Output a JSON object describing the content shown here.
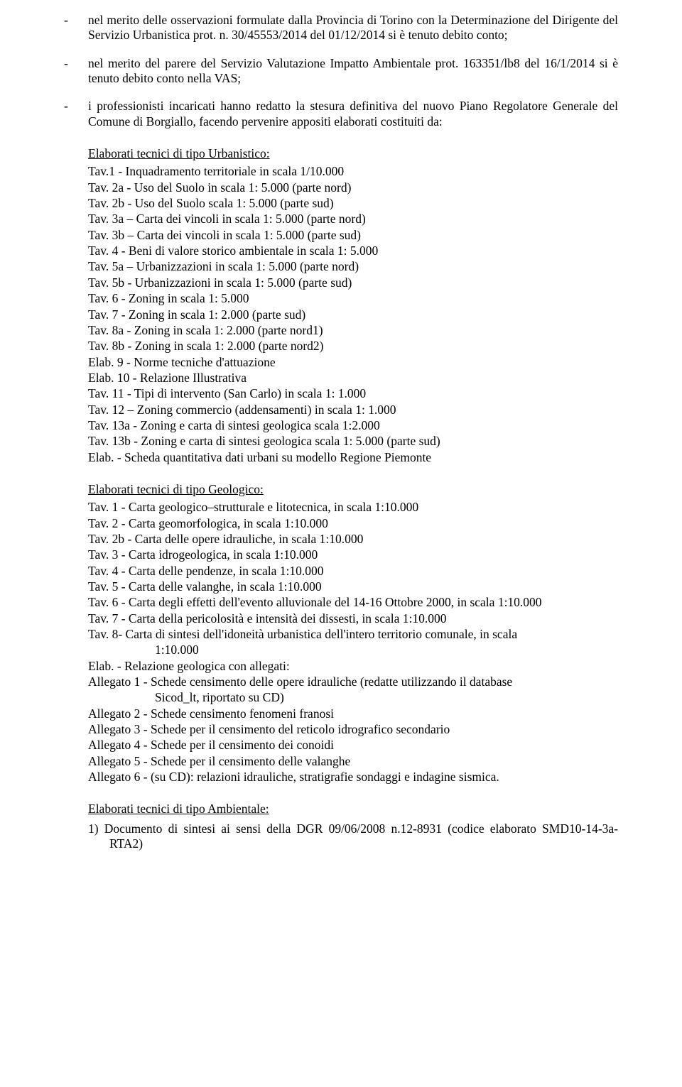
{
  "b1_l1": "nel merito delle osservazioni formulate dalla Provincia di Torino con la Determinazione del",
  "b1_l2": "Dirigente del Servizio Urbanistica prot. n. 30/45553/2014 del 01/12/2014 si è tenuto debito conto;",
  "b2_l1": "nel merito del parere del Servizio Valutazione Impatto Ambientale prot. 163351/lb8 del",
  "b2_l2": "16/1/2014 si è tenuto debito conto nella VAS;",
  "b3_l1": "i professionisti incaricati hanno redatto la stesura definitiva del nuovo  Piano Regolatore",
  "b3_l2": "Generale del Comune di Borgiallo, facendo pervenire appositi elaborati costituiti da:",
  "h_urb": "Elaborati tecnici di tipo Urbanistico",
  "u": [
    "Tav.1 -  Inquadramento territoriale in scala 1/10.000",
    "Tav. 2a - Uso del Suolo in scala 1: 5.000 (parte nord)",
    "Tav. 2b - Uso del Suolo scala 1: 5.000 (parte sud)",
    "Tav. 3a – Carta dei vincoli in scala 1: 5.000 (parte nord)",
    "Tav. 3b – Carta dei vincoli in scala 1: 5.000 (parte sud)",
    "Tav. 4  -  Beni di valore storico ambientale in scala 1: 5.000",
    "Tav. 5a – Urbanizzazioni in scala 1: 5.000 (parte nord)",
    "Tav. 5b - Urbanizzazioni in scala 1: 5.000 (parte sud)",
    "Tav. 6 - Zoning in scala 1: 5.000",
    "Tav. 7 - Zoning in scala 1: 2.000 (parte sud)",
    "Tav. 8a - Zoning in scala 1: 2.000 (parte nord1)",
    "Tav. 8b - Zoning in scala 1: 2.000 (parte nord2)",
    "Elab. 9 - Norme tecniche d'attuazione",
    "Elab. 10 - Relazione Illustrativa",
    "Tav. 11 - Tipi di intervento (San Carlo) in scala 1: 1.000",
    "Tav. 12 – Zoning commercio (addensamenti) in scala 1: 1.000",
    "Tav. 13a - Zoning e carta di sintesi geologica scala 1:2.000",
    "Tav. 13b - Zoning e carta di sintesi geologica scala 1: 5.000 (parte sud)",
    "Elab. - Scheda quantitativa dati urbani su modello Regione Piemonte"
  ],
  "h_geo": "Elaborati tecnici di tipo Geologico",
  "g": [
    "Tav. 1 -  Carta geologico–strutturale e litotecnica, in scala 1:10.000",
    "Tav. 2 - Carta geomorfologica, in scala 1:10.000",
    "Tav. 2b - Carta delle opere idrauliche, in scala 1:10.000",
    "Tav. 3 - Carta idrogeologica, in scala 1:10.000",
    "Tav. 4 - Carta delle pendenze, in scala 1:10.000",
    "Tav. 5 - Carta delle valanghe, in scala 1:10.000",
    "Tav. 6 - Carta degli effetti dell'evento alluvionale del 14-16 Ottobre 2000, in scala 1:10.000",
    "Tav. 7 - Carta della pericolosità e intensità dei dissesti, in scala 1:10.000"
  ],
  "g8a": "Tav. 8- Carta di sintesi dell'idoneità urbanistica dell'intero territorio comunale, in scala",
  "g8b": "1:10.000",
  "g_elab": "Elab. - Relazione geologica con allegati:",
  "g_al1a": "Allegato 1 - Schede censimento delle opere idrauliche (redatte utilizzando il database",
  "g_al1b": "Sicod_lt, riportato su CD)",
  "g_al": [
    "Allegato 2 - Schede censimento fenomeni franosi",
    "Allegato 3 -  Schede per il censimento del reticolo idrografico secondario",
    "Allegato 4 -  Schede per il censimento dei conoidi",
    "Allegato 5 -  Schede per il censimento delle valanghe",
    "Allegato 6 - (su CD): relazioni idrauliche, stratigrafie sondaggi e indagine sismica."
  ],
  "h_amb": "Elaborati tecnici di tipo Ambientale",
  "amb1": "1) Documento di sintesi ai sensi della DGR 09/06/2008 n.12-8931 (codice elaborato SMD10-14-3a-RTA2)"
}
